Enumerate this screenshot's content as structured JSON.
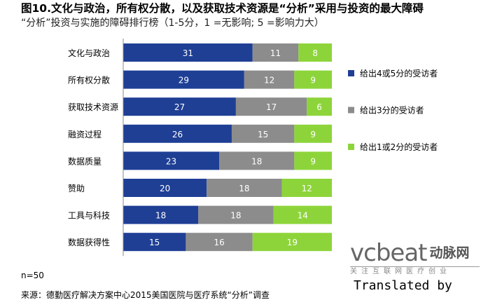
{
  "title": "图10.文化与政治，所有权分散，以及获取技术资源是“分析”采用与投资的最大障碍",
  "subtitle": "“分析”投资与实施的障碍排行榜（1-5分，1 =无影响; 5 =影响力大）",
  "note": "n=50",
  "source": "来源：德勤医疗解决方案中心2015美国医院与医疗系统“分析”调查",
  "logo": {
    "wordmark": "vcbeat",
    "cn": "动脉网",
    "slogan": "关注互联网医疗创业"
  },
  "translated_by": "Translated by",
  "chart_data": {
    "type": "bar",
    "stacked": true,
    "orientation": "horizontal",
    "categories": [
      "文化与政治",
      "所有权分散",
      "获取技术资源",
      "融资过程",
      "数据质量",
      "赞助",
      "工具与科技",
      "数据获得性"
    ],
    "series": [
      {
        "name": "给出4或5分的受访者",
        "color": "#1F3F95",
        "values": [
          31,
          29,
          27,
          26,
          23,
          20,
          18,
          15
        ]
      },
      {
        "name": "给出3分的受访者",
        "color": "#8C8C8C",
        "values": [
          11,
          12,
          17,
          15,
          18,
          18,
          18,
          16
        ]
      },
      {
        "name": "给出1或2分的受访者",
        "color": "#8DD43A",
        "values": [
          8,
          9,
          6,
          9,
          9,
          12,
          14,
          19
        ]
      }
    ],
    "xlim": [
      0,
      50
    ],
    "legend": "right",
    "grid": false
  }
}
